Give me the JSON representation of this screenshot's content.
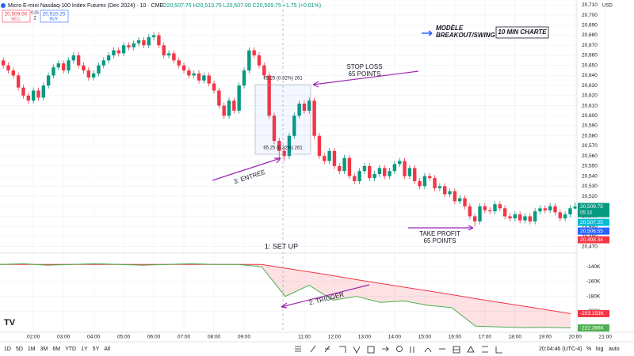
{
  "header": {
    "symbol": "Micro E-mini Nasdaq-100 Index Futures (Dec 2024) · 10 · CME",
    "ohlc": "O20,507.75 H20,513.75 L20,507.00 C20,509.75 +1.75 (+0.01%)",
    "sell_price": "20,509.50",
    "sell": "SELL",
    "spread": "0.25",
    "buy_price": "20,510.25",
    "buy": "BUY",
    "quantity": "2",
    "currency": "USD"
  },
  "annotations": {
    "model_line1": "MODÈLE",
    "model_line2": "BREAKOUT/SWING",
    "timeframe": "10 MIN CHARTE",
    "stop_loss": "STOP LOSS",
    "stop_points": "65 POINTS",
    "entry": "3: ENTREE",
    "take_profit": "TAKE PROFIT",
    "profit_points": "65 POINTS",
    "setup": "1: SET UP",
    "trigger": "2: TRIGGER",
    "measure_top": "65.25 (0.32%) 261",
    "measure_bottom": "65.25 (0.32%) 261"
  },
  "price_markers": [
    {
      "value": 20509.75,
      "label": "20,509.75",
      "sub": "05:13",
      "color": "#089981"
    },
    {
      "value": 20507.25,
      "label": "20,507.25",
      "color": "#00bcd4"
    },
    {
      "value": 20506.55,
      "label": "20,506.55",
      "color": "#2962ff"
    },
    {
      "value": 20498.34,
      "label": "20,498.34",
      "color": "#f23645"
    }
  ],
  "toolbar": {
    "ranges": [
      "1D",
      "5D",
      "1M",
      "3M",
      "6M",
      "YTD",
      "1Y",
      "5Y",
      "All"
    ],
    "clock": "20:04:46 (UTC-4)",
    "percent": "%",
    "log": "log",
    "auto": "auto"
  },
  "chart_data": [
    {
      "type": "candlestick",
      "up_color": "#089981",
      "down_color": "#f23645",
      "grid": true,
      "categories": [
        null,
        null,
        null,
        null,
        null,
        null,
        "02:00",
        null,
        null,
        null,
        null,
        null,
        "03:00",
        null,
        null,
        null,
        null,
        null,
        "04:00",
        null,
        null,
        null,
        null,
        null,
        "05:00",
        null,
        null,
        null,
        null,
        null,
        "06:00",
        null,
        null,
        null,
        null,
        null,
        "07:00",
        null,
        null,
        null,
        null,
        null,
        "08:00",
        null,
        null,
        null,
        null,
        null,
        "09:00",
        null,
        null,
        null,
        null,
        null,
        null,
        null,
        null,
        null,
        null,
        null,
        "11:00",
        null,
        null,
        null,
        null,
        null,
        "12:00",
        null,
        null,
        null,
        null,
        null,
        "13:00",
        null,
        null,
        null,
        null,
        null,
        "14:00",
        null,
        null,
        null,
        null,
        null,
        "15:00",
        null,
        null,
        null,
        null,
        null,
        "16:00",
        null,
        null,
        null,
        null,
        null,
        "17:00",
        null,
        null,
        null,
        null,
        null,
        "18:00",
        null,
        null,
        null,
        null,
        null,
        "19:00",
        null,
        null,
        null,
        null,
        null,
        "20:00",
        null,
        null,
        null,
        null,
        null,
        "21:00"
      ],
      "open": [
        20655,
        20650,
        20645,
        20640,
        20628,
        20620,
        20615,
        20625,
        20618,
        20630,
        20640,
        20648,
        20652,
        20645,
        20655,
        20660,
        20650,
        20645,
        20638,
        20642,
        20650,
        20655,
        20660,
        20665,
        20662,
        20670,
        20668,
        20672,
        20675,
        20670,
        20678,
        20680,
        20670,
        20660,
        20662,
        20655,
        20650,
        20645,
        20640,
        20642,
        20635,
        20640,
        20632,
        20625,
        20610,
        20600,
        20615,
        20605,
        20630,
        20645,
        20665,
        20660,
        20650,
        20640,
        20600,
        20575,
        20565,
        20560,
        20580,
        20600,
        20612,
        20605,
        20615,
        20580,
        20560,
        20555,
        20565,
        20550,
        20545,
        20558,
        20540,
        20535,
        20545,
        20550,
        20538,
        20542,
        20548,
        20540,
        20545,
        20552,
        20555,
        20540,
        20548,
        20535,
        20530,
        20540,
        20538,
        20528,
        20530,
        20522,
        20525,
        20515,
        20518,
        20510,
        20500,
        20495,
        20510,
        20506,
        20505,
        20512,
        20508,
        20500,
        20498,
        20502,
        20496,
        20500,
        20495,
        20505,
        20508,
        20506,
        20510,
        20504,
        20498,
        20502,
        20507.75,
        null,
        null,
        null,
        null,
        null,
        null
      ],
      "high": [
        20658,
        20653,
        20648,
        20643,
        20631,
        20623,
        20628,
        20628,
        20633,
        20643,
        20651,
        20655,
        20655,
        20658,
        20663,
        20663,
        20653,
        20648,
        20645,
        20653,
        20658,
        20663,
        20668,
        20668,
        20673,
        20673,
        20675,
        20678,
        20678,
        20681,
        20683,
        20683,
        20673,
        20665,
        20665,
        20658,
        20653,
        20648,
        20645,
        20645,
        20643,
        20643,
        20635,
        20628,
        20613,
        20618,
        20618,
        20633,
        20648,
        20668,
        20668,
        20663,
        20653,
        20643,
        20603,
        20578,
        20568,
        20583,
        20603,
        20615,
        20615,
        20618,
        20618,
        20583,
        20563,
        20568,
        20568,
        20553,
        20561,
        20561,
        20543,
        20548,
        20553,
        20553,
        20545,
        20551,
        20551,
        20548,
        20555,
        20558,
        20558,
        20551,
        20551,
        20538,
        20543,
        20543,
        20541,
        20533,
        20533,
        20528,
        20528,
        20521,
        20521,
        20513,
        20503,
        20513,
        20513,
        20509,
        20515,
        20515,
        20511,
        20503,
        20505,
        20505,
        20503,
        20503,
        20508,
        20511,
        20511,
        20513,
        20513,
        20507,
        20505,
        20511,
        20513.75,
        null,
        null,
        null,
        null,
        null,
        null
      ],
      "low": [
        20647,
        20642,
        20637,
        20625,
        20617,
        20612,
        20612,
        20615,
        20615,
        20627,
        20637,
        20645,
        20642,
        20642,
        20652,
        20647,
        20642,
        20635,
        20635,
        20639,
        20647,
        20652,
        20657,
        20659,
        20659,
        20665,
        20665,
        20669,
        20667,
        20667,
        20675,
        20667,
        20657,
        20657,
        20652,
        20647,
        20642,
        20637,
        20637,
        20632,
        20632,
        20629,
        20622,
        20607,
        20597,
        20597,
        20602,
        20602,
        20627,
        20642,
        20657,
        20647,
        20637,
        20597,
        20572,
        20555,
        20555,
        20557,
        20577,
        20597,
        20602,
        20602,
        20577,
        20557,
        20552,
        20552,
        20547,
        20542,
        20542,
        20537,
        20532,
        20532,
        20542,
        20535,
        20535,
        20539,
        20537,
        20537,
        20542,
        20549,
        20537,
        20537,
        20532,
        20527,
        20527,
        20535,
        20525,
        20525,
        20519,
        20519,
        20512,
        20512,
        20507,
        20497,
        20490,
        20492,
        20503,
        20502,
        20502,
        20505,
        20497,
        20495,
        20495,
        20493,
        20493,
        20492,
        20492,
        20502,
        20503,
        20503,
        20501,
        20495,
        20495,
        20499,
        20507,
        null,
        null,
        null,
        null,
        null,
        null
      ],
      "close": [
        20650,
        20645,
        20640,
        20628,
        20620,
        20615,
        20625,
        20618,
        20630,
        20640,
        20648,
        20652,
        20645,
        20655,
        20660,
        20650,
        20645,
        20638,
        20642,
        20650,
        20655,
        20660,
        20665,
        20662,
        20670,
        20668,
        20672,
        20675,
        20670,
        20678,
        20680,
        20670,
        20660,
        20662,
        20655,
        20650,
        20645,
        20640,
        20642,
        20635,
        20640,
        20632,
        20625,
        20610,
        20600,
        20615,
        20605,
        20630,
        20645,
        20665,
        20660,
        20650,
        20640,
        20600,
        20575,
        20565,
        20560,
        20580,
        20600,
        20612,
        20605,
        20615,
        20580,
        20560,
        20555,
        20565,
        20550,
        20545,
        20558,
        20540,
        20535,
        20545,
        20550,
        20538,
        20542,
        20548,
        20540,
        20545,
        20552,
        20555,
        20540,
        20548,
        20535,
        20530,
        20540,
        20538,
        20528,
        20530,
        20522,
        20525,
        20515,
        20518,
        20510,
        20500,
        20495,
        20510,
        20506,
        20505,
        20512,
        20508,
        20500,
        20498,
        20502,
        20496,
        20500,
        20495,
        20505,
        20508,
        20506,
        20510,
        20504,
        20498,
        20502,
        20508,
        20509.75,
        null,
        null,
        null,
        null,
        null,
        null
      ],
      "ylim": [
        20465,
        20715
      ],
      "yticks": [
        {
          "value": 20470,
          "label": "20,470"
        },
        {
          "value": 20480,
          "label": "20,480"
        },
        {
          "value": 20490,
          "label": "20,490"
        },
        {
          "value": 20500,
          "label": "20,500"
        },
        {
          "value": 20510,
          "label": "20,510"
        },
        {
          "value": 20520,
          "label": "20,520"
        },
        {
          "value": 20530,
          "label": "20,530"
        },
        {
          "value": 20540,
          "label": "20,540"
        },
        {
          "value": 20550,
          "label": "20,550"
        },
        {
          "value": 20560,
          "label": "20,560"
        },
        {
          "value": 20570,
          "label": "20,570"
        },
        {
          "value": 20580,
          "label": "20,580"
        },
        {
          "value": 20590,
          "label": "20,590"
        },
        {
          "value": 20600,
          "label": "20,600"
        },
        {
          "value": 20610,
          "label": "20,610"
        },
        {
          "value": 20620,
          "label": "20,620"
        },
        {
          "value": 20630,
          "label": "20,630"
        },
        {
          "value": 20640,
          "label": "20,640"
        },
        {
          "value": 20650,
          "label": "20,650"
        },
        {
          "value": 20660,
          "label": "20,660"
        },
        {
          "value": 20670,
          "label": "20,670"
        },
        {
          "value": 20680,
          "label": "20,680"
        },
        {
          "value": 20690,
          "label": "20,690"
        },
        {
          "value": 20700,
          "label": "20,700"
        },
        {
          "value": 20710,
          "label": "20,710"
        }
      ]
    },
    {
      "type": "line",
      "fill_color": "rgba(242,54,69,0.15)",
      "series": [
        {
          "color": "#f23645",
          "values": [
            -137000,
            -137000,
            -137000,
            -137000,
            -137000,
            -137000,
            -137000,
            -137000,
            -137000,
            -137000,
            -137000,
            -137000,
            -142000,
            -147000,
            -152000,
            -157500,
            -162500,
            -167500,
            -172500,
            -177500,
            -183000,
            -188000,
            -193000,
            -198000,
            -203153
          ],
          "last_label": "-203.153K"
        },
        {
          "color": "#4caf50",
          "values": [
            -137000,
            -136000,
            -138000,
            -137000,
            -136000,
            -137000,
            -138000,
            -137000,
            -136000,
            -137000,
            -137000,
            -140000,
            -180000,
            -165000,
            -185000,
            -180000,
            -188000,
            -186000,
            -192000,
            -195000,
            -220000,
            -221000,
            -222000,
            -221500,
            -222386
          ],
          "last_label": "-222.386K"
        }
      ],
      "ylim": [
        -125000,
        -225000
      ],
      "yticks": [
        {
          "value": -140000,
          "label": "-140K"
        },
        {
          "value": -160000,
          "label": "-160K"
        },
        {
          "value": -180000,
          "label": "-180K"
        },
        {
          "value": -200000,
          "label": "-200K"
        }
      ]
    }
  ]
}
